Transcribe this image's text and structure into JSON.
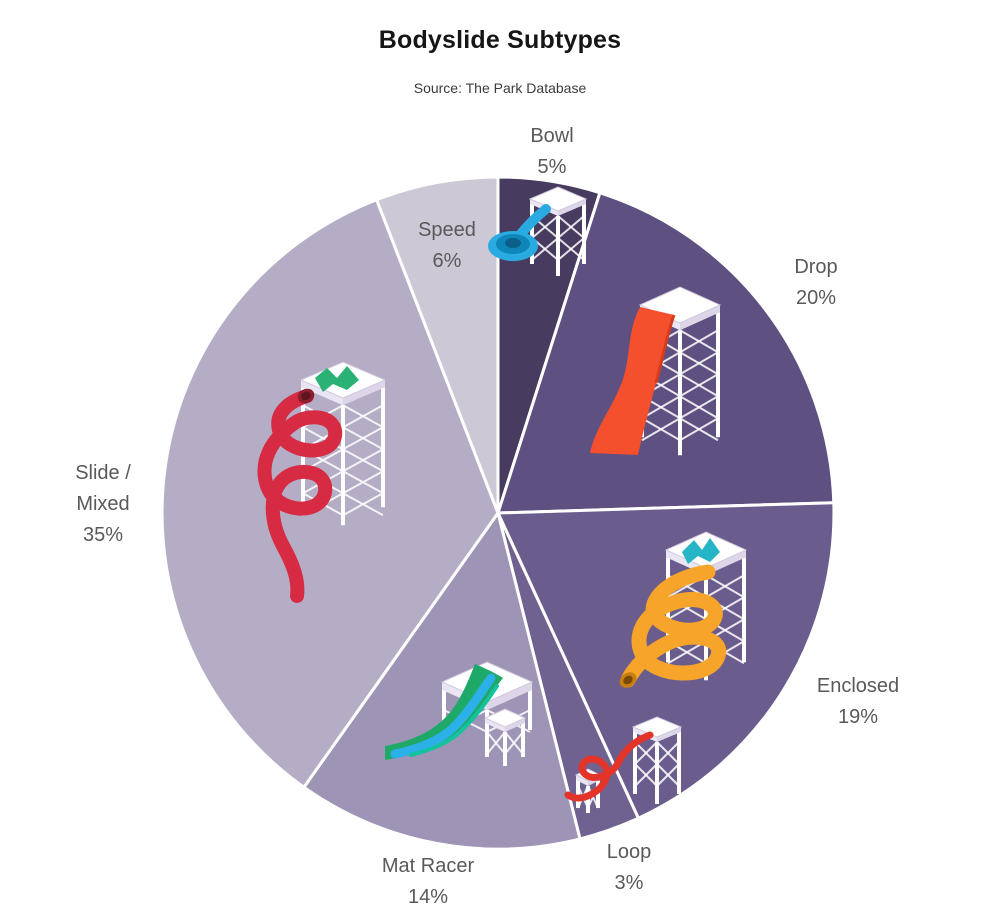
{
  "title": "Bodyslide Subtypes",
  "source_line": "Source: The Park Database",
  "colors": {
    "background": "#ffffff",
    "separator": "#ffffff",
    "label_text": "#595959",
    "title_text": "#161616"
  },
  "chart_data": {
    "type": "pie",
    "title": "Bodyslide Subtypes",
    "subtitle": "Source: The Park Database",
    "direction": "clockwise",
    "start_angle_deg": 0,
    "legend_position": "labels-around-pie",
    "slices": [
      {
        "name": "Bowl",
        "value": 5,
        "pct_label": "5%",
        "color": "#473b5f",
        "icon": "bowl-funnel-slide-illustration",
        "icon_color": "#29abe2"
      },
      {
        "name": "Drop",
        "value": 20,
        "pct_label": "20%",
        "color": "#5e5181",
        "icon": "drop-slide-illustration",
        "icon_color": "#f4502d"
      },
      {
        "name": "Enclosed",
        "value": 19,
        "pct_label": "19%",
        "color": "#6a5d8e",
        "icon": "enclosed-spiral-slide-illustration",
        "icon_color": "#f7a42a"
      },
      {
        "name": "Loop",
        "value": 3,
        "pct_label": "3%",
        "color": "#6f6291",
        "icon": "loop-slide-illustration",
        "icon_color": "#e23428"
      },
      {
        "name": "Mat Racer",
        "value": 14,
        "pct_label": "14%",
        "color": "#9e94b5",
        "icon": "mat-racer-slide-illustration",
        "icon_color": "#1fa968"
      },
      {
        "name": "Slide /\nMixed",
        "value": 35,
        "pct_label": "35%",
        "color": "#b4adc5",
        "icon": "mixed-spiral-slide-illustration",
        "icon_color": "#d62b42"
      },
      {
        "name": "Speed",
        "value": 6,
        "pct_label": "6%",
        "color": "#cdc8d6",
        "icon": "none",
        "icon_color": ""
      }
    ]
  }
}
